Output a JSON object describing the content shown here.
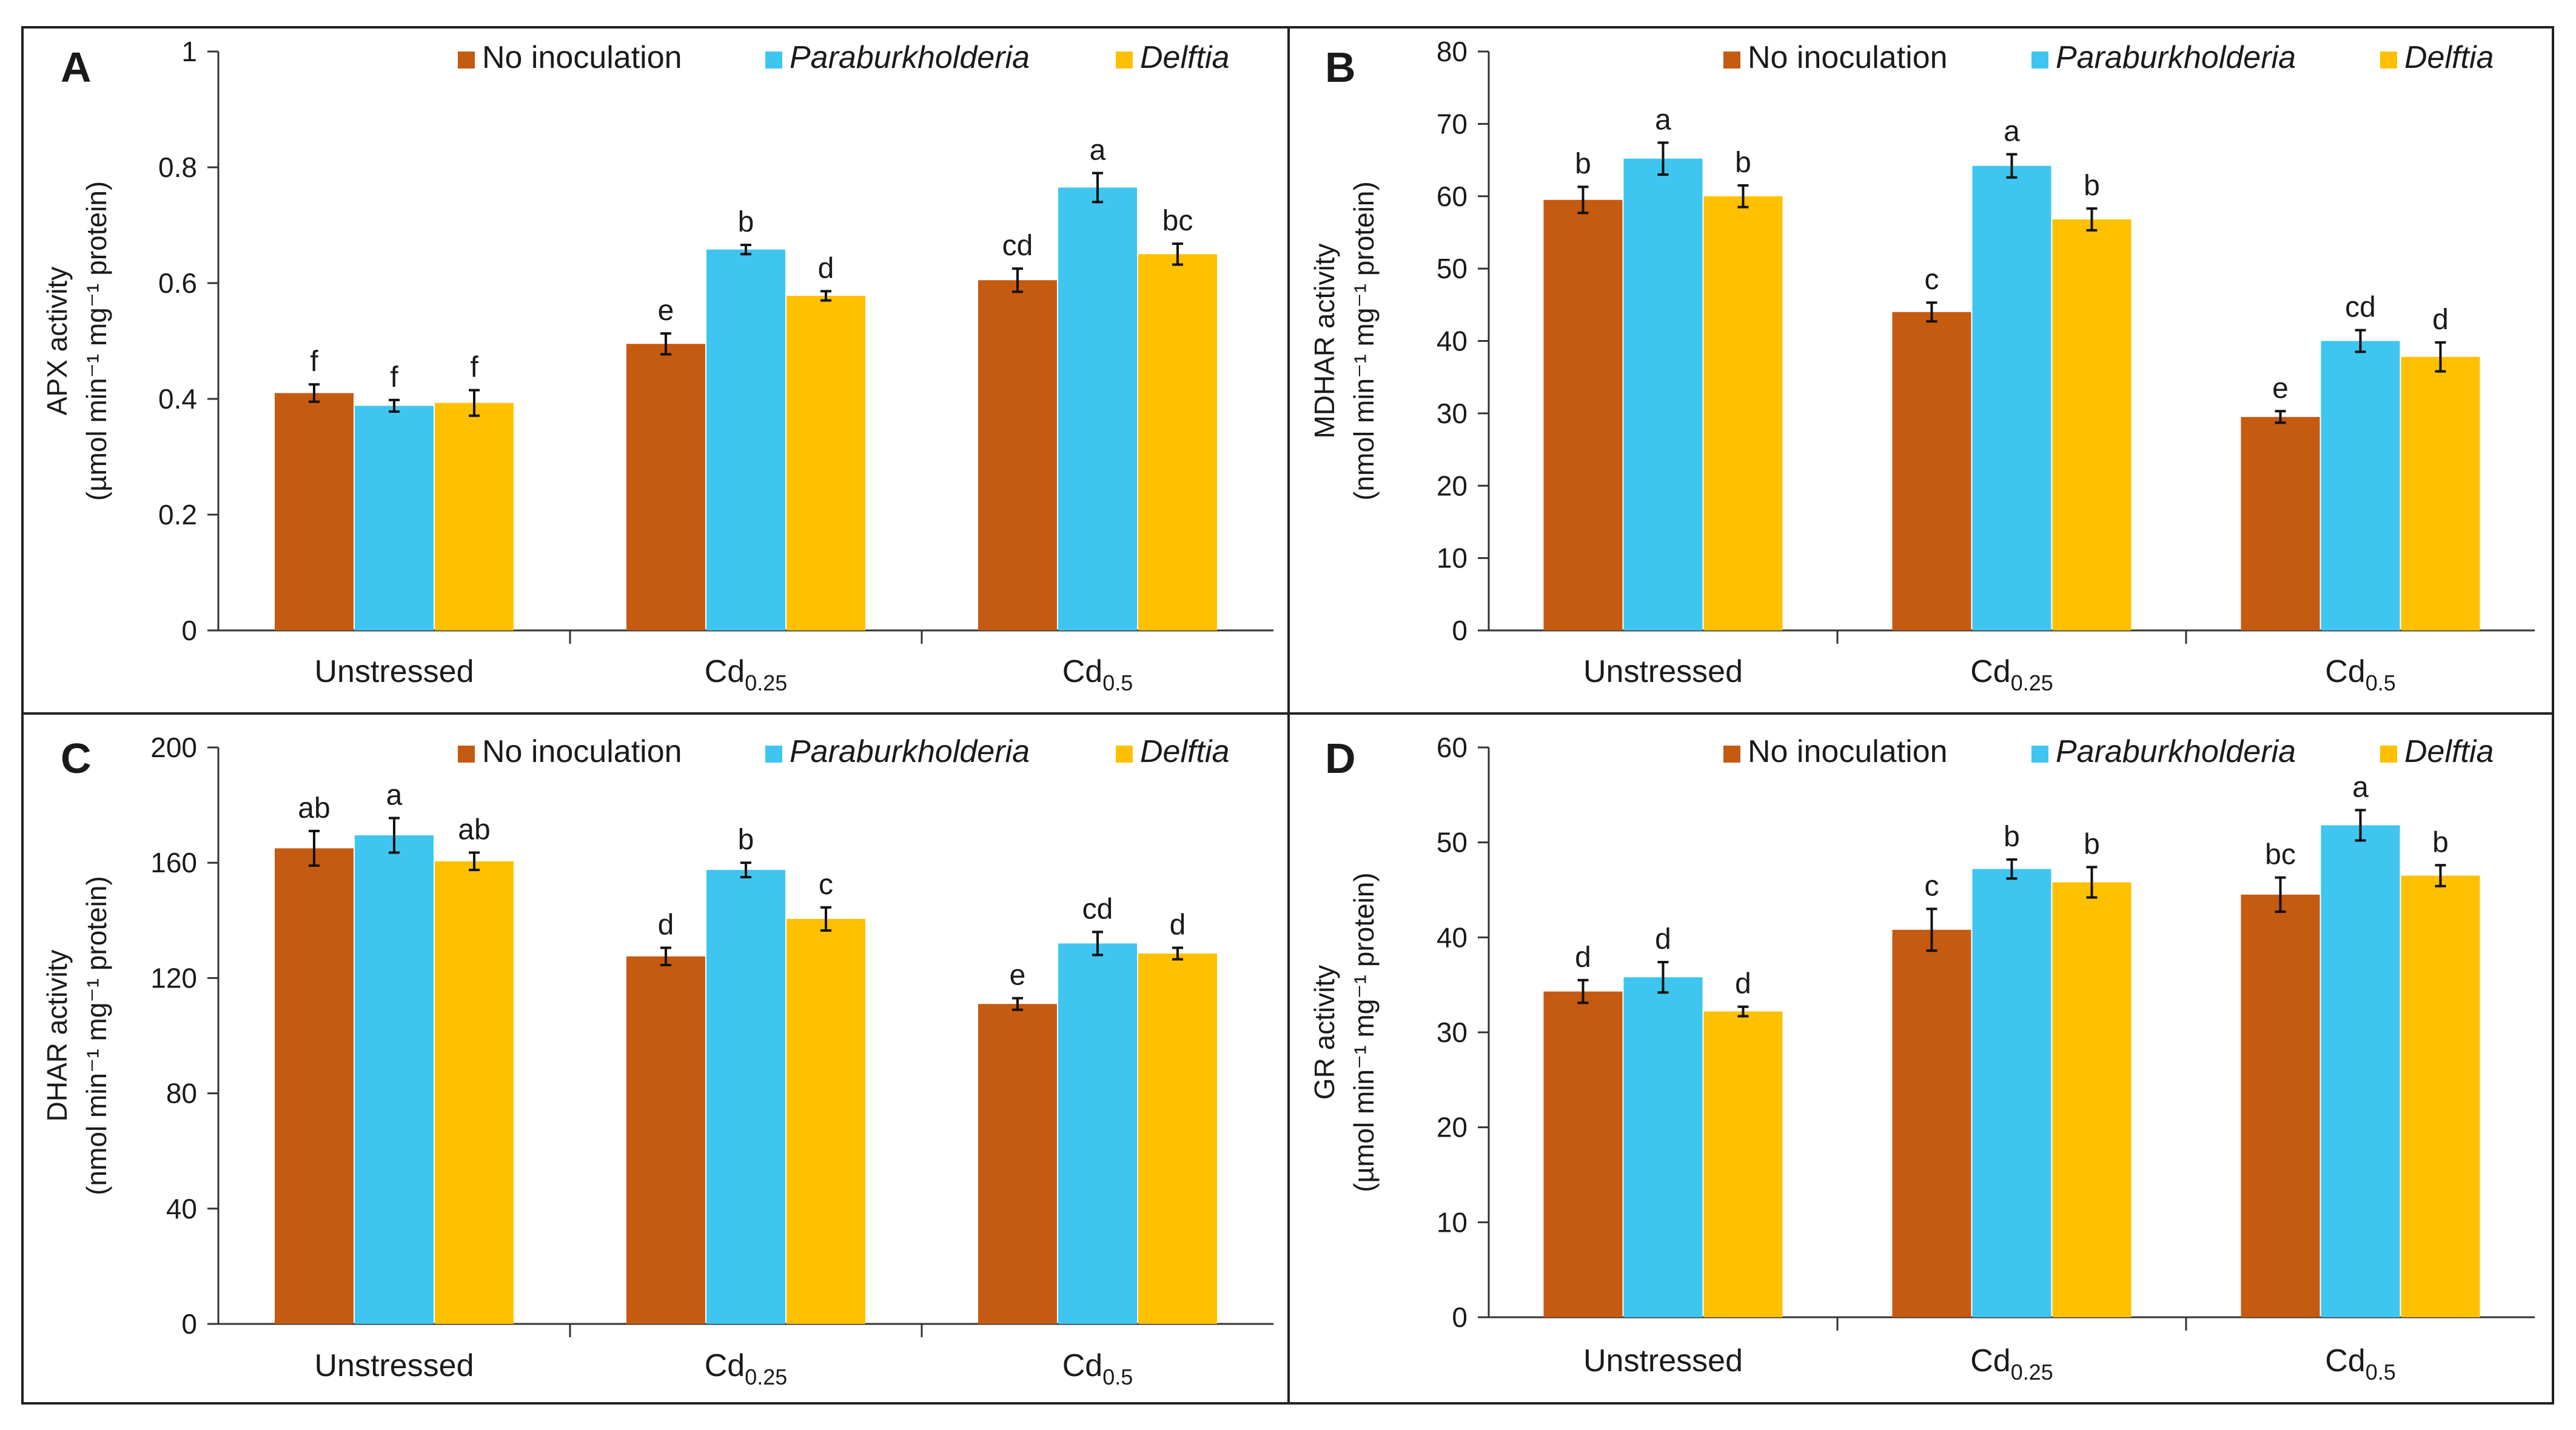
{
  "chart_data": [
    {
      "panel": "A",
      "type": "bar",
      "ylabel_line1": "APX activity",
      "ylabel_line2": "(µmol min⁻¹ mg⁻¹ protein)",
      "ylim": [
        0,
        1
      ],
      "yticks": [
        "0",
        "0.2",
        "0.4",
        "0.6",
        "0.8",
        "1"
      ],
      "categories": [
        {
          "main": "Unstressed",
          "sub": ""
        },
        {
          "main": "Cd",
          "sub": "0.25"
        },
        {
          "main": "Cd",
          "sub": "0.5"
        }
      ],
      "series": [
        {
          "name": "No inoculation",
          "italic": false,
          "color": "#C55A11",
          "values": [
            0.41,
            0.495,
            0.605
          ],
          "errors": [
            0.015,
            0.018,
            0.02
          ],
          "letters": [
            "f",
            "e",
            "cd"
          ]
        },
        {
          "name": "Paraburkholderia",
          "italic": true,
          "color": "#3EC6F0",
          "values": [
            0.388,
            0.658,
            0.765
          ],
          "errors": [
            0.01,
            0.008,
            0.025
          ],
          "letters": [
            "f",
            "b",
            "a"
          ]
        },
        {
          "name": "Delftia",
          "italic": true,
          "color": "#FFC000",
          "values": [
            0.393,
            0.578,
            0.65
          ],
          "errors": [
            0.022,
            0.008,
            0.018
          ],
          "letters": [
            "f",
            "d",
            "bc"
          ]
        }
      ]
    },
    {
      "panel": "B",
      "type": "bar",
      "ylabel_line1": "MDHAR activity",
      "ylabel_line2": "(nmol min⁻¹ mg⁻¹ protein)",
      "ylim": [
        0,
        80
      ],
      "yticks": [
        "0",
        "10",
        "20",
        "30",
        "40",
        "50",
        "60",
        "70",
        "80"
      ],
      "categories": [
        {
          "main": "Unstressed",
          "sub": ""
        },
        {
          "main": "Cd",
          "sub": "0.25"
        },
        {
          "main": "Cd",
          "sub": "0.5"
        }
      ],
      "series": [
        {
          "name": "No inoculation",
          "italic": false,
          "color": "#C55A11",
          "values": [
            59.5,
            44,
            29.5
          ],
          "errors": [
            1.8,
            1.3,
            0.8
          ],
          "letters": [
            "b",
            "c",
            "e"
          ]
        },
        {
          "name": "Paraburkholderia",
          "italic": true,
          "color": "#3EC6F0",
          "values": [
            65.2,
            64.2,
            40
          ],
          "errors": [
            2.2,
            1.6,
            1.5
          ],
          "letters": [
            "a",
            "a",
            "cd"
          ]
        },
        {
          "name": "Delftia",
          "italic": true,
          "color": "#FFC000",
          "values": [
            60,
            56.8,
            37.8
          ],
          "errors": [
            1.5,
            1.5,
            2.0
          ],
          "letters": [
            "b",
            "b",
            "d"
          ]
        }
      ]
    },
    {
      "panel": "C",
      "type": "bar",
      "ylabel_line1": "DHAR activity",
      "ylabel_line2": "(nmol min⁻¹ mg⁻¹ protein)",
      "ylim": [
        0,
        200
      ],
      "yticks": [
        "0",
        "40",
        "80",
        "120",
        "160",
        "200"
      ],
      "categories": [
        {
          "main": "Unstressed",
          "sub": ""
        },
        {
          "main": "Cd",
          "sub": "0.25"
        },
        {
          "main": "Cd",
          "sub": "0.5"
        }
      ],
      "series": [
        {
          "name": "No inoculation",
          "italic": false,
          "color": "#C55A11",
          "values": [
            165,
            127.5,
            111
          ],
          "errors": [
            6,
            3,
            2
          ],
          "letters": [
            "ab",
            "d",
            "e"
          ]
        },
        {
          "name": "Paraburkholderia",
          "italic": true,
          "color": "#3EC6F0",
          "values": [
            169.5,
            157.5,
            132
          ],
          "errors": [
            6,
            2.5,
            4
          ],
          "letters": [
            "a",
            "b",
            "cd"
          ]
        },
        {
          "name": "Delftia",
          "italic": true,
          "color": "#FFC000",
          "values": [
            160.5,
            140.5,
            128.5
          ],
          "errors": [
            3,
            4,
            2
          ],
          "letters": [
            "ab",
            "c",
            "d"
          ]
        }
      ]
    },
    {
      "panel": "D",
      "type": "bar",
      "ylabel_line1": "GR activity",
      "ylabel_line2": "(µmol min⁻¹ mg⁻¹ protein)",
      "ylim": [
        0,
        60
      ],
      "yticks": [
        "0",
        "10",
        "20",
        "30",
        "40",
        "50",
        "60"
      ],
      "categories": [
        {
          "main": "Unstressed",
          "sub": ""
        },
        {
          "main": "Cd",
          "sub": "0.25"
        },
        {
          "main": "Cd",
          "sub": "0.5"
        }
      ],
      "series": [
        {
          "name": "No inoculation",
          "italic": false,
          "color": "#C55A11",
          "values": [
            34.3,
            40.8,
            44.5
          ],
          "errors": [
            1.2,
            2.2,
            1.8
          ],
          "letters": [
            "d",
            "c",
            "bc"
          ]
        },
        {
          "name": "Paraburkholderia",
          "italic": true,
          "color": "#3EC6F0",
          "values": [
            35.8,
            47.2,
            51.8
          ],
          "errors": [
            1.6,
            1.0,
            1.6
          ],
          "letters": [
            "d",
            "b",
            "a"
          ]
        },
        {
          "name": "Delftia",
          "italic": true,
          "color": "#FFC000",
          "values": [
            32.2,
            45.8,
            46.5
          ],
          "errors": [
            0.5,
            1.6,
            1.1
          ],
          "letters": [
            "d",
            "b",
            "b"
          ]
        }
      ]
    }
  ]
}
